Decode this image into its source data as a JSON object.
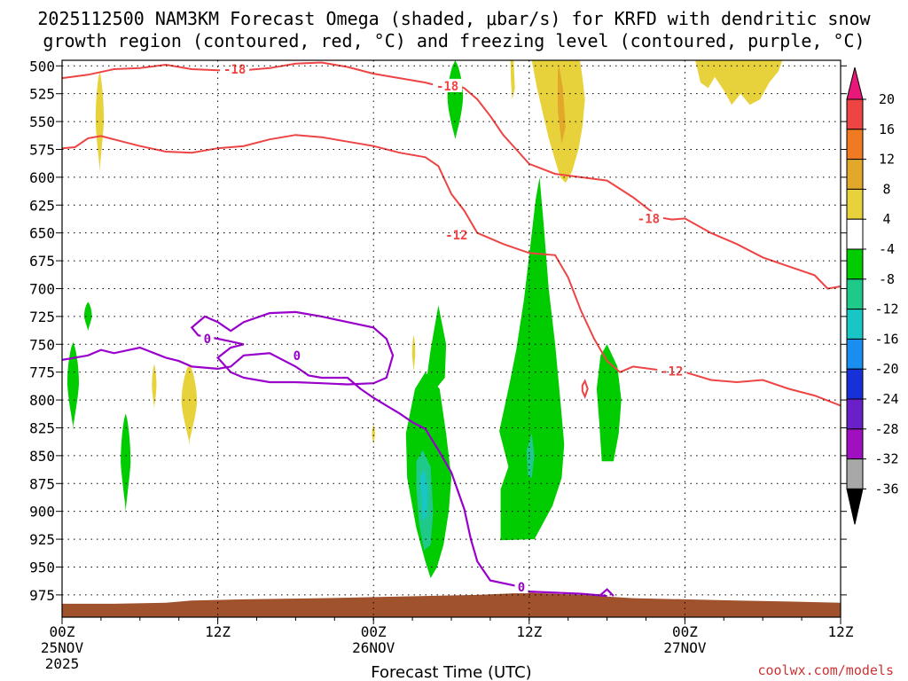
{
  "chart_data": {
    "type": "time-height cross section",
    "title_line1": "2025112500 NAM3KM Forecast Omega (shaded, μbar/s) for KRFD with dendritic snow",
    "title_line2": "growth region (contoured, red, °C) and freezing level (contoured, purple, °C)",
    "xlabel": "Forecast Time (UTC)",
    "credit": "coolwx.com/models",
    "x_range_hours": [
      0,
      60
    ],
    "y_range_hpa": [
      995,
      495
    ],
    "y_ticks": [
      500,
      525,
      550,
      575,
      600,
      625,
      650,
      675,
      700,
      725,
      750,
      775,
      800,
      825,
      850,
      875,
      900,
      925,
      950,
      975
    ],
    "x_ticks": [
      {
        "hour": 0,
        "label": "00Z",
        "date": "25NOV",
        "year": "2025"
      },
      {
        "hour": 12,
        "label": "12Z",
        "date": "",
        "year": ""
      },
      {
        "hour": 24,
        "label": "00Z",
        "date": "26NOV",
        "year": ""
      },
      {
        "hour": 36,
        "label": "12Z",
        "date": "",
        "year": ""
      },
      {
        "hour": 48,
        "label": "00Z",
        "date": "27NOV",
        "year": ""
      },
      {
        "hour": 60,
        "label": "12Z",
        "date": "",
        "year": ""
      }
    ],
    "colorbar": {
      "labels": [
        "20",
        "16",
        "12",
        "8",
        "4",
        "-4",
        "-8",
        "-12",
        "-16",
        "-20",
        "-24",
        "-28",
        "-32",
        "-36"
      ],
      "colors": [
        "#e8187a",
        "#ee4444",
        "#f07a22",
        "#e2a82a",
        "#e8d23c",
        "#ffffff",
        "#00cc00",
        "#1ec98a",
        "#18c6c6",
        "#1a8ef0",
        "#1830d8",
        "#6a20c8",
        "#a010c0",
        "#a8a8a8",
        "#000000"
      ]
    },
    "contour_labels": {
      "dgz_upper": "-18",
      "dgz_lower": "-12",
      "freezing": "0"
    },
    "dgz_upper_line": [
      [
        0,
        511
      ],
      [
        2,
        508
      ],
      [
        4,
        503
      ],
      [
        6,
        502
      ],
      [
        8,
        499
      ],
      [
        10,
        503
      ],
      [
        12,
        504
      ],
      [
        14,
        504
      ],
      [
        16,
        502
      ],
      [
        18,
        498
      ],
      [
        20,
        497
      ],
      [
        22,
        501
      ],
      [
        24,
        507
      ],
      [
        26,
        511
      ],
      [
        28,
        515
      ],
      [
        29,
        518
      ],
      [
        30,
        516
      ],
      [
        31,
        520
      ],
      [
        32,
        530
      ],
      [
        33,
        545
      ],
      [
        34,
        562
      ],
      [
        35,
        575
      ],
      [
        36,
        588
      ],
      [
        38,
        597
      ],
      [
        40,
        600
      ],
      [
        42,
        603
      ],
      [
        44,
        618
      ],
      [
        46,
        636
      ],
      [
        47,
        638
      ],
      [
        48,
        637
      ],
      [
        50,
        650
      ],
      [
        52,
        660
      ],
      [
        54,
        672
      ],
      [
        56,
        680
      ],
      [
        58,
        688
      ],
      [
        59,
        700
      ],
      [
        60,
        698
      ]
    ],
    "dgz_lower_line": [
      [
        0,
        574
      ],
      [
        1,
        573
      ],
      [
        2,
        565
      ],
      [
        3,
        563
      ],
      [
        4,
        566
      ],
      [
        6,
        572
      ],
      [
        8,
        577
      ],
      [
        10,
        578
      ],
      [
        12,
        574
      ],
      [
        14,
        572
      ],
      [
        16,
        566
      ],
      [
        18,
        562
      ],
      [
        20,
        564
      ],
      [
        22,
        568
      ],
      [
        24,
        572
      ],
      [
        26,
        578
      ],
      [
        28,
        582
      ],
      [
        29,
        590
      ],
      [
        30,
        615
      ],
      [
        31,
        630
      ],
      [
        32,
        650
      ],
      [
        34,
        660
      ],
      [
        36,
        668
      ],
      [
        38,
        670
      ],
      [
        39,
        690
      ],
      [
        40,
        720
      ],
      [
        41,
        745
      ],
      [
        42,
        765
      ],
      [
        43,
        775
      ],
      [
        44,
        770
      ],
      [
        46,
        773
      ],
      [
        48,
        775
      ],
      [
        50,
        782
      ],
      [
        52,
        784
      ],
      [
        54,
        782
      ],
      [
        56,
        790
      ],
      [
        58,
        796
      ],
      [
        60,
        805
      ]
    ],
    "freezing_line": [
      [
        0,
        764
      ],
      [
        2,
        760
      ],
      [
        3,
        755
      ],
      [
        4,
        758
      ],
      [
        6,
        753
      ],
      [
        8,
        762
      ],
      [
        9,
        765
      ],
      [
        10,
        770
      ],
      [
        12,
        772
      ],
      [
        13,
        770
      ],
      [
        14,
        760
      ],
      [
        16,
        758
      ],
      [
        18,
        770
      ],
      [
        19,
        778
      ],
      [
        20,
        780
      ],
      [
        22,
        780
      ],
      [
        23,
        790
      ],
      [
        24,
        798
      ],
      [
        25,
        805
      ],
      [
        26,
        812
      ],
      [
        27,
        820
      ],
      [
        28,
        826
      ],
      [
        29,
        845
      ],
      [
        30,
        865
      ],
      [
        31,
        898
      ],
      [
        31.5,
        925
      ],
      [
        32,
        945
      ],
      [
        33,
        962
      ],
      [
        35,
        967
      ],
      [
        36,
        972
      ],
      [
        38,
        973
      ],
      [
        40,
        974
      ],
      [
        42,
        976
      ]
    ],
    "freezing_blob": [
      [
        10,
        735
      ],
      [
        11,
        725
      ],
      [
        12,
        730
      ],
      [
        13,
        738
      ],
      [
        14,
        730
      ],
      [
        16,
        722
      ],
      [
        18,
        721
      ],
      [
        20,
        725
      ],
      [
        22,
        730
      ],
      [
        24,
        735
      ],
      [
        25,
        745
      ],
      [
        25.5,
        760
      ],
      [
        25,
        780
      ],
      [
        24,
        785
      ],
      [
        22,
        786
      ],
      [
        20,
        785
      ],
      [
        18,
        784
      ],
      [
        16,
        784
      ],
      [
        14,
        780
      ],
      [
        13,
        775
      ],
      [
        12,
        762
      ],
      [
        13,
        753
      ],
      [
        14,
        750
      ],
      [
        12,
        745
      ],
      [
        10.5,
        742
      ],
      [
        10,
        735
      ]
    ],
    "snow_growth_ok": true
  }
}
